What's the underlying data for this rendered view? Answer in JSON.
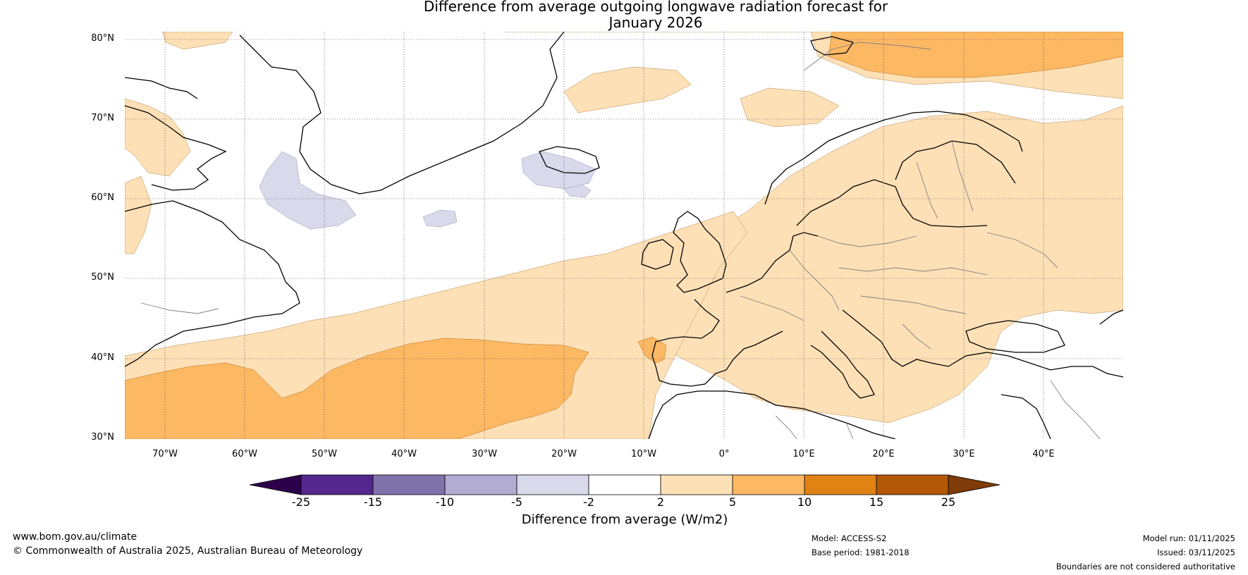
{
  "title": {
    "line1": "Difference from average outgoing longwave radiation forecast for",
    "line2": "January 2026"
  },
  "map": {
    "lat_labels": [
      "80°N",
      "70°N",
      "60°N",
      "50°N",
      "40°N",
      "30°N"
    ],
    "lon_labels": [
      "70°W",
      "60°W",
      "50°W",
      "40°W",
      "30°W",
      "20°W",
      "10°W",
      "0°",
      "10°E",
      "20°E",
      "30°E",
      "40°E"
    ],
    "lat_range": [
      30,
      81
    ],
    "lon_range": [
      -75,
      50
    ]
  },
  "colorbar": {
    "labels": [
      "-25",
      "-15",
      "-10",
      "-5",
      "-2",
      "2",
      "5",
      "10",
      "15",
      "25"
    ],
    "colors": [
      "#54278f",
      "#8073ac",
      "#b2abd2",
      "#d8daeb",
      "#ffffff",
      "#fee0b6",
      "#fdb863",
      "#e08214",
      "#b35806"
    ],
    "under_color": "#2d004b",
    "over_color": "#7f3b08",
    "title": "Difference from average (W/m2)"
  },
  "footer": {
    "website": "www.bom.gov.au/climate",
    "copyright": "© Commonwealth of Australia 2025, Australian Bureau of Meteorology",
    "model": "Model: ACCESS-S2",
    "base_period": "Base period: 1981-2018",
    "model_run": "Model run: 01/11/2025",
    "issued": "Issued: 03/11/2025",
    "disclaimer": "Boundaries are not considered authoritative"
  }
}
